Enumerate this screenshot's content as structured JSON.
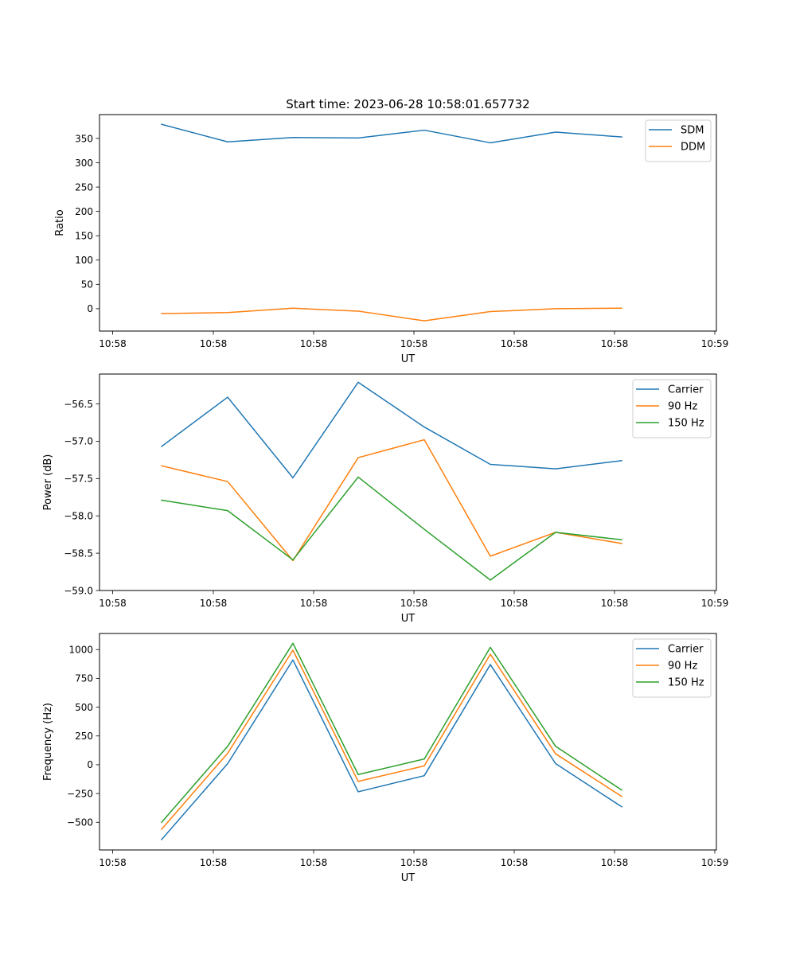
{
  "chart_data": [
    {
      "type": "line",
      "title": "Start time: 2023-06-28 10:58:01.657732",
      "xlabel": "UT",
      "ylabel": "Ratio",
      "x_ticks": [
        "10:58",
        "10:58",
        "10:58",
        "10:58",
        "10:58",
        "10:58",
        "10:59"
      ],
      "y_ticks": [
        0,
        50,
        100,
        150,
        200,
        250,
        300,
        350
      ],
      "ylim": [
        -46,
        399
      ],
      "legend_position": "upper right",
      "grid": false,
      "series": [
        {
          "name": "SDM",
          "color": "#1f77b4",
          "values": [
            379,
            343,
            352,
            351,
            367,
            341,
            363,
            353
          ]
        },
        {
          "name": "DDM",
          "color": "#ff7f0e",
          "values": [
            -10,
            -8,
            1,
            -5,
            -25,
            -6,
            0,
            1
          ]
        }
      ]
    },
    {
      "type": "line",
      "title": "",
      "xlabel": "UT",
      "ylabel": "Power (dB)",
      "x_ticks": [
        "10:58",
        "10:58",
        "10:58",
        "10:58",
        "10:58",
        "10:58",
        "10:59"
      ],
      "y_ticks": [
        -59.0,
        -58.5,
        -58.0,
        -57.5,
        -57.0,
        -56.5
      ],
      "y_tick_labels": [
        "−59.0",
        "−58.5",
        "−58.0",
        "−57.5",
        "−57.0",
        "−56.5"
      ],
      "ylim": [
        -59.0,
        -56.1
      ],
      "legend_position": "upper right",
      "grid": false,
      "series": [
        {
          "name": "Carrier",
          "color": "#1f77b4",
          "values": [
            -57.07,
            -56.41,
            -57.49,
            -56.21,
            -56.81,
            -57.31,
            -57.37,
            -57.26
          ]
        },
        {
          "name": "90 Hz",
          "color": "#ff7f0e",
          "values": [
            -57.33,
            -57.54,
            -58.6,
            -57.22,
            -56.98,
            -58.54,
            -58.22,
            -58.37
          ]
        },
        {
          "name": "150 Hz",
          "color": "#2ca02c",
          "values": [
            -57.79,
            -57.93,
            -58.59,
            -57.48,
            -58.18,
            -58.86,
            -58.22,
            -58.32
          ]
        }
      ]
    },
    {
      "type": "line",
      "title": "",
      "xlabel": "UT",
      "ylabel": "Frequency (Hz)",
      "x_ticks": [
        "10:58",
        "10:58",
        "10:58",
        "10:58",
        "10:58",
        "10:58",
        "10:59"
      ],
      "y_ticks": [
        -500,
        -250,
        0,
        250,
        500,
        750,
        1000
      ],
      "y_tick_labels": [
        "−500",
        "−250",
        "0",
        "250",
        "500",
        "750",
        "1000"
      ],
      "ylim": [
        -740,
        1140
      ],
      "legend_position": "upper right",
      "grid": false,
      "series": [
        {
          "name": "Carrier",
          "color": "#1f77b4",
          "values": [
            -650,
            10,
            910,
            -235,
            -95,
            870,
            10,
            -365
          ]
        },
        {
          "name": "90 Hz",
          "color": "#ff7f0e",
          "values": [
            -560,
            100,
            995,
            -145,
            -10,
            960,
            95,
            -275
          ]
        },
        {
          "name": "150 Hz",
          "color": "#2ca02c",
          "values": [
            -500,
            160,
            1055,
            -85,
            50,
            1020,
            160,
            -220
          ]
        }
      ]
    }
  ]
}
